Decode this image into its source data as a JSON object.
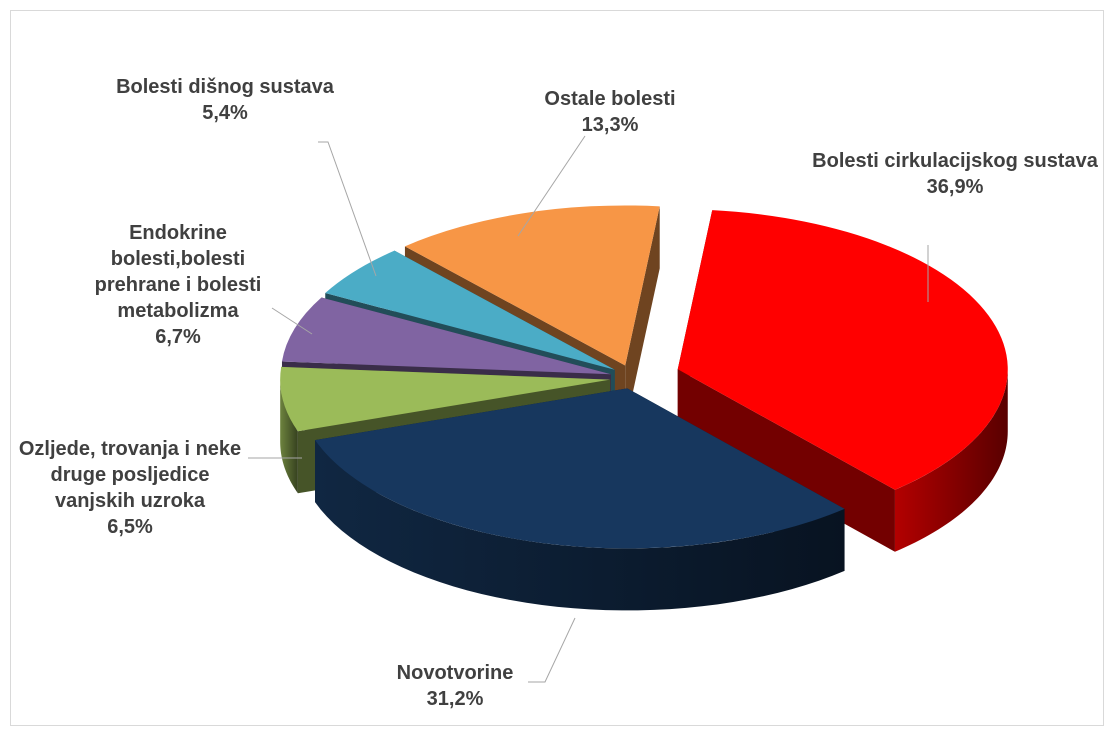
{
  "chart_data": {
    "type": "pie",
    "categories": [
      "Bolesti cirkulacijskog sustava",
      "Novotvorine",
      "Ozljede, trovanja i neke druge posljedice vanjskih uzroka",
      "Endokrine bolesti,bolesti prehrane i bolesti metabolizma",
      "Bolesti dišnog sustava",
      "Ostale bolesti"
    ],
    "values": [
      36.9,
      31.2,
      6.5,
      6.7,
      5.4,
      13.3
    ],
    "value_labels": [
      "36,9%",
      "31,2%",
      "6,5%",
      "6,7%",
      "5,4%",
      "13,3%"
    ],
    "colors": [
      "#ff0000",
      "#17375e",
      "#9bbb59",
      "#8064a2",
      "#4bacc6",
      "#f79646"
    ]
  }
}
